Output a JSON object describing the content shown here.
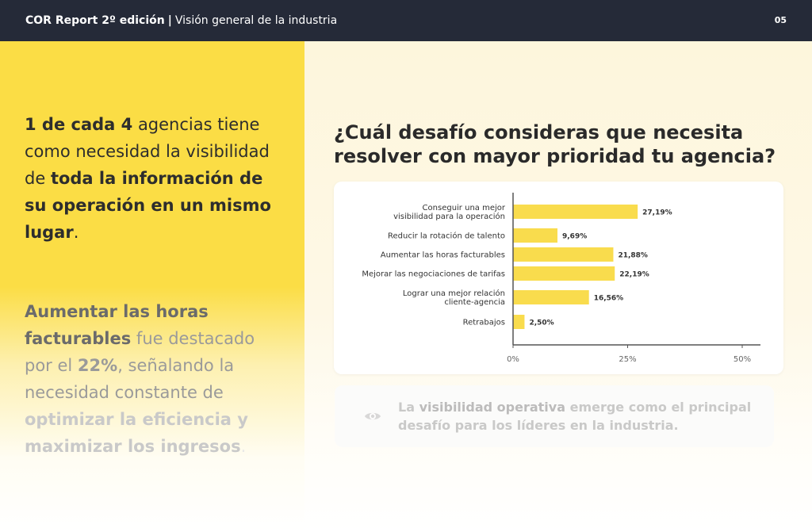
{
  "header": {
    "brand": "COR Report 2º edición",
    "separator": "|",
    "section": "Visión general de la industria",
    "page_number": "05"
  },
  "left": {
    "p1": {
      "s1": "1 de cada 4",
      "s2": " agencias tiene como necesidad la visibilidad de ",
      "s3": "toda la información de su operación en un mismo lugar",
      "s4": "."
    },
    "p2": {
      "s1": "Aumentar las horas facturables",
      "s2": " fue destacado por el ",
      "s3": "22%",
      "s4": ", señalando la necesidad constante de ",
      "s5": "optimizar la eficiencia y maximizar los ingresos",
      "s6": "."
    }
  },
  "question": "¿Cuál desafío consideras que necesita resolver con mayor prioridad tu agencia?",
  "chart_data": {
    "type": "bar",
    "orientation": "horizontal",
    "categories": [
      [
        "Conseguir una mejor",
        "visibilidad para la operación"
      ],
      [
        "Reducir la rotación de talento"
      ],
      [
        "Aumentar las horas facturables"
      ],
      [
        "Mejorar las negociaciones de tarifas"
      ],
      [
        "Lograr una mejor relación",
        "cliente-agencia"
      ],
      [
        "Retrabajos"
      ]
    ],
    "values": [
      27.19,
      9.69,
      21.88,
      22.19,
      16.56,
      2.5
    ],
    "value_labels": [
      "27,19%",
      "9,69%",
      "21,88%",
      "22,19%",
      "16,56%",
      "2,50%"
    ],
    "xlim": [
      0,
      50
    ],
    "x_ticks": [
      0,
      25,
      50
    ],
    "x_tick_labels": [
      "0%",
      "25%",
      "50%"
    ],
    "bar_color": "#f9dc4d",
    "grid": false
  },
  "insight": {
    "icon": "eye-icon",
    "s1": "La ",
    "s2": "visibilidad operativa",
    "s3": " emerge como el principal desafío para los líderes en la industria."
  },
  "colors": {
    "topbar": "#252a38",
    "accent_yellow": "#fbdd45",
    "text_dark": "#2d2d2d"
  }
}
